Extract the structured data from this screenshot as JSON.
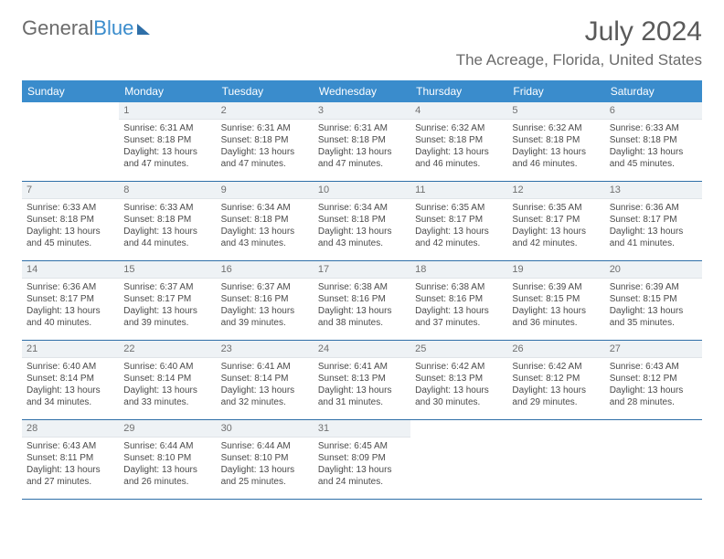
{
  "logo": {
    "part1": "General",
    "part2": "Blue"
  },
  "title": "July 2024",
  "location": "The Acreage, Florida, United States",
  "colors": {
    "header_bg": "#3a8ccc",
    "header_text": "#ffffff",
    "daynum_bg": "#eef2f5",
    "border": "#2f6fa8",
    "body_text": "#4a4a4a",
    "title_text": "#5a5a5a"
  },
  "day_headers": [
    "Sunday",
    "Monday",
    "Tuesday",
    "Wednesday",
    "Thursday",
    "Friday",
    "Saturday"
  ],
  "weeks": [
    [
      {
        "num": "",
        "sunrise": "",
        "sunset": "",
        "daylight1": "",
        "daylight2": ""
      },
      {
        "num": "1",
        "sunrise": "Sunrise: 6:31 AM",
        "sunset": "Sunset: 8:18 PM",
        "daylight1": "Daylight: 13 hours",
        "daylight2": "and 47 minutes."
      },
      {
        "num": "2",
        "sunrise": "Sunrise: 6:31 AM",
        "sunset": "Sunset: 8:18 PM",
        "daylight1": "Daylight: 13 hours",
        "daylight2": "and 47 minutes."
      },
      {
        "num": "3",
        "sunrise": "Sunrise: 6:31 AM",
        "sunset": "Sunset: 8:18 PM",
        "daylight1": "Daylight: 13 hours",
        "daylight2": "and 47 minutes."
      },
      {
        "num": "4",
        "sunrise": "Sunrise: 6:32 AM",
        "sunset": "Sunset: 8:18 PM",
        "daylight1": "Daylight: 13 hours",
        "daylight2": "and 46 minutes."
      },
      {
        "num": "5",
        "sunrise": "Sunrise: 6:32 AM",
        "sunset": "Sunset: 8:18 PM",
        "daylight1": "Daylight: 13 hours",
        "daylight2": "and 46 minutes."
      },
      {
        "num": "6",
        "sunrise": "Sunrise: 6:33 AM",
        "sunset": "Sunset: 8:18 PM",
        "daylight1": "Daylight: 13 hours",
        "daylight2": "and 45 minutes."
      }
    ],
    [
      {
        "num": "7",
        "sunrise": "Sunrise: 6:33 AM",
        "sunset": "Sunset: 8:18 PM",
        "daylight1": "Daylight: 13 hours",
        "daylight2": "and 45 minutes."
      },
      {
        "num": "8",
        "sunrise": "Sunrise: 6:33 AM",
        "sunset": "Sunset: 8:18 PM",
        "daylight1": "Daylight: 13 hours",
        "daylight2": "and 44 minutes."
      },
      {
        "num": "9",
        "sunrise": "Sunrise: 6:34 AM",
        "sunset": "Sunset: 8:18 PM",
        "daylight1": "Daylight: 13 hours",
        "daylight2": "and 43 minutes."
      },
      {
        "num": "10",
        "sunrise": "Sunrise: 6:34 AM",
        "sunset": "Sunset: 8:18 PM",
        "daylight1": "Daylight: 13 hours",
        "daylight2": "and 43 minutes."
      },
      {
        "num": "11",
        "sunrise": "Sunrise: 6:35 AM",
        "sunset": "Sunset: 8:17 PM",
        "daylight1": "Daylight: 13 hours",
        "daylight2": "and 42 minutes."
      },
      {
        "num": "12",
        "sunrise": "Sunrise: 6:35 AM",
        "sunset": "Sunset: 8:17 PM",
        "daylight1": "Daylight: 13 hours",
        "daylight2": "and 42 minutes."
      },
      {
        "num": "13",
        "sunrise": "Sunrise: 6:36 AM",
        "sunset": "Sunset: 8:17 PM",
        "daylight1": "Daylight: 13 hours",
        "daylight2": "and 41 minutes."
      }
    ],
    [
      {
        "num": "14",
        "sunrise": "Sunrise: 6:36 AM",
        "sunset": "Sunset: 8:17 PM",
        "daylight1": "Daylight: 13 hours",
        "daylight2": "and 40 minutes."
      },
      {
        "num": "15",
        "sunrise": "Sunrise: 6:37 AM",
        "sunset": "Sunset: 8:17 PM",
        "daylight1": "Daylight: 13 hours",
        "daylight2": "and 39 minutes."
      },
      {
        "num": "16",
        "sunrise": "Sunrise: 6:37 AM",
        "sunset": "Sunset: 8:16 PM",
        "daylight1": "Daylight: 13 hours",
        "daylight2": "and 39 minutes."
      },
      {
        "num": "17",
        "sunrise": "Sunrise: 6:38 AM",
        "sunset": "Sunset: 8:16 PM",
        "daylight1": "Daylight: 13 hours",
        "daylight2": "and 38 minutes."
      },
      {
        "num": "18",
        "sunrise": "Sunrise: 6:38 AM",
        "sunset": "Sunset: 8:16 PM",
        "daylight1": "Daylight: 13 hours",
        "daylight2": "and 37 minutes."
      },
      {
        "num": "19",
        "sunrise": "Sunrise: 6:39 AM",
        "sunset": "Sunset: 8:15 PM",
        "daylight1": "Daylight: 13 hours",
        "daylight2": "and 36 minutes."
      },
      {
        "num": "20",
        "sunrise": "Sunrise: 6:39 AM",
        "sunset": "Sunset: 8:15 PM",
        "daylight1": "Daylight: 13 hours",
        "daylight2": "and 35 minutes."
      }
    ],
    [
      {
        "num": "21",
        "sunrise": "Sunrise: 6:40 AM",
        "sunset": "Sunset: 8:14 PM",
        "daylight1": "Daylight: 13 hours",
        "daylight2": "and 34 minutes."
      },
      {
        "num": "22",
        "sunrise": "Sunrise: 6:40 AM",
        "sunset": "Sunset: 8:14 PM",
        "daylight1": "Daylight: 13 hours",
        "daylight2": "and 33 minutes."
      },
      {
        "num": "23",
        "sunrise": "Sunrise: 6:41 AM",
        "sunset": "Sunset: 8:14 PM",
        "daylight1": "Daylight: 13 hours",
        "daylight2": "and 32 minutes."
      },
      {
        "num": "24",
        "sunrise": "Sunrise: 6:41 AM",
        "sunset": "Sunset: 8:13 PM",
        "daylight1": "Daylight: 13 hours",
        "daylight2": "and 31 minutes."
      },
      {
        "num": "25",
        "sunrise": "Sunrise: 6:42 AM",
        "sunset": "Sunset: 8:13 PM",
        "daylight1": "Daylight: 13 hours",
        "daylight2": "and 30 minutes."
      },
      {
        "num": "26",
        "sunrise": "Sunrise: 6:42 AM",
        "sunset": "Sunset: 8:12 PM",
        "daylight1": "Daylight: 13 hours",
        "daylight2": "and 29 minutes."
      },
      {
        "num": "27",
        "sunrise": "Sunrise: 6:43 AM",
        "sunset": "Sunset: 8:12 PM",
        "daylight1": "Daylight: 13 hours",
        "daylight2": "and 28 minutes."
      }
    ],
    [
      {
        "num": "28",
        "sunrise": "Sunrise: 6:43 AM",
        "sunset": "Sunset: 8:11 PM",
        "daylight1": "Daylight: 13 hours",
        "daylight2": "and 27 minutes."
      },
      {
        "num": "29",
        "sunrise": "Sunrise: 6:44 AM",
        "sunset": "Sunset: 8:10 PM",
        "daylight1": "Daylight: 13 hours",
        "daylight2": "and 26 minutes."
      },
      {
        "num": "30",
        "sunrise": "Sunrise: 6:44 AM",
        "sunset": "Sunset: 8:10 PM",
        "daylight1": "Daylight: 13 hours",
        "daylight2": "and 25 minutes."
      },
      {
        "num": "31",
        "sunrise": "Sunrise: 6:45 AM",
        "sunset": "Sunset: 8:09 PM",
        "daylight1": "Daylight: 13 hours",
        "daylight2": "and 24 minutes."
      },
      {
        "num": "",
        "sunrise": "",
        "sunset": "",
        "daylight1": "",
        "daylight2": ""
      },
      {
        "num": "",
        "sunrise": "",
        "sunset": "",
        "daylight1": "",
        "daylight2": ""
      },
      {
        "num": "",
        "sunrise": "",
        "sunset": "",
        "daylight1": "",
        "daylight2": ""
      }
    ]
  ]
}
